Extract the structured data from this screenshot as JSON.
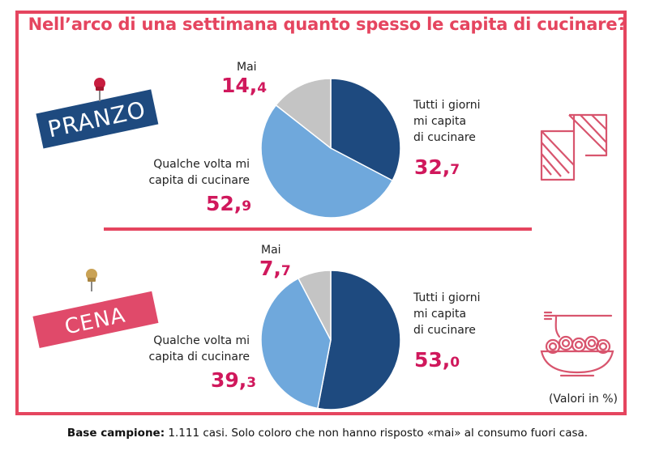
{
  "title": "Nell’arco di una settimana quanto spesso le capita di cucinare?",
  "colors": {
    "accent": "#e5455f",
    "value": "#d0185c",
    "dark_blue": "#1e4a7f",
    "light_blue": "#6fa8dc",
    "grey": "#c4c4c4",
    "pranzo_bg": "#1e4a7f",
    "cena_bg": "#e04a6a"
  },
  "chart_data": [
    {
      "type": "pie",
      "title": "PRANZO",
      "categories": [
        "Tutti i giorni mi capita di cucinare",
        "Qualche volta mi capita di cucinare",
        "Mai"
      ],
      "values": [
        32.7,
        52.9,
        14.4
      ],
      "value_text": [
        {
          "int": "32,",
          "dec": "7"
        },
        {
          "int": "52,",
          "dec": "9"
        },
        {
          "int": "14,",
          "dec": "4"
        }
      ]
    },
    {
      "type": "pie",
      "title": "CENA",
      "categories": [
        "Tutti i giorni mi capita di cucinare",
        "Qualche volta mi capita di cucinare",
        "Mai"
      ],
      "values": [
        53.0,
        39.3,
        7.7
      ],
      "value_text": [
        {
          "int": "53,",
          "dec": "0"
        },
        {
          "int": "39,",
          "dec": "3"
        },
        {
          "int": "7,",
          "dec": "7"
        }
      ]
    }
  ],
  "labels": {
    "tutti_line1": "Tutti i giorni",
    "tutti_line2": "mi capita",
    "tutti_line3": "di cucinare",
    "qualche_line1": "Qualche volta mi",
    "qualche_line2": "capita di cucinare",
    "mai": "Mai"
  },
  "note": "(Valori in %)",
  "base": {
    "bold": "Base campione:",
    "text": " 1.111 casi. Solo coloro che non hanno risposto «mai» al consumo fuori casa."
  },
  "icons": [
    "pushpin-icon",
    "sandwich-icon",
    "pasta-bowl-icon"
  ]
}
